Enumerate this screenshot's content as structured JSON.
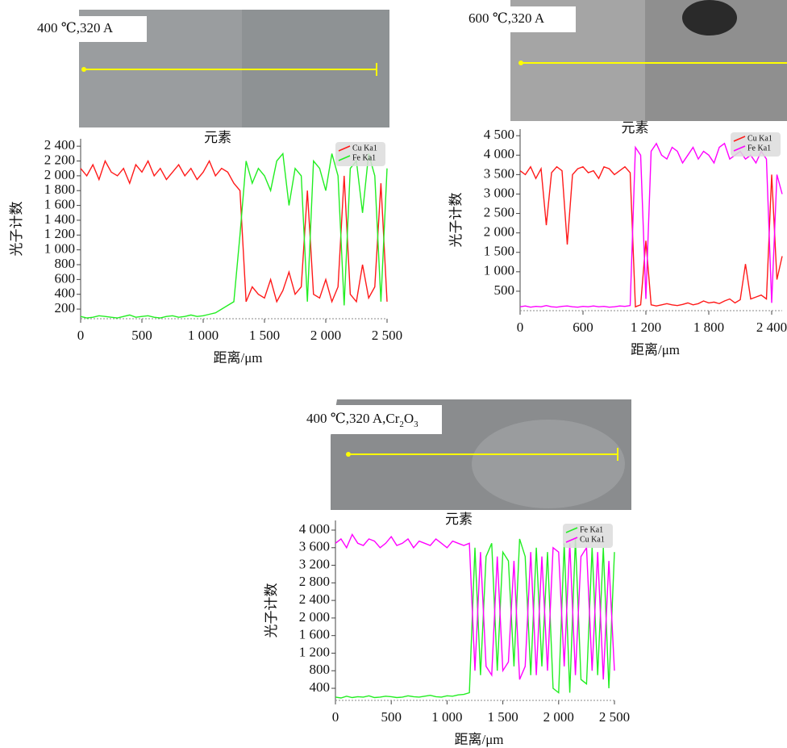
{
  "chart_data": [
    {
      "type": "line",
      "panel_label": [
        "400 ℃,320 A"
      ],
      "title": "元素",
      "xlabel": "距离/μm",
      "ylabel": "光子计数",
      "x": [
        0,
        50,
        100,
        150,
        200,
        250,
        300,
        350,
        400,
        450,
        500,
        550,
        600,
        650,
        700,
        750,
        800,
        850,
        900,
        950,
        1000,
        1050,
        1100,
        1150,
        1200,
        1250,
        1300,
        1350,
        1400,
        1450,
        1500,
        1550,
        1600,
        1650,
        1700,
        1750,
        1800,
        1850,
        1900,
        1950,
        2000,
        2050,
        2100,
        2150,
        2200,
        2250,
        2300,
        2350,
        2400,
        2450,
        2500
      ],
      "series": [
        {
          "name": "Cu Ka1",
          "color": "#ff1a1a",
          "values": [
            2100,
            2000,
            2150,
            1950,
            2200,
            2050,
            2000,
            2100,
            1900,
            2150,
            2050,
            2200,
            2000,
            2100,
            1950,
            2050,
            2150,
            2000,
            2100,
            1950,
            2050,
            2200,
            2000,
            2100,
            2050,
            1900,
            1800,
            300,
            500,
            400,
            350,
            600,
            300,
            450,
            700,
            400,
            500,
            1800,
            400,
            350,
            600,
            300,
            500,
            2000,
            400,
            300,
            800,
            350,
            500,
            1900,
            300
          ]
        },
        {
          "name": "Fe Ka1",
          "color": "#22ee22",
          "values": [
            100,
            80,
            90,
            110,
            100,
            90,
            80,
            100,
            120,
            90,
            100,
            110,
            90,
            80,
            100,
            110,
            90,
            100,
            120,
            100,
            110,
            130,
            150,
            200,
            250,
            300,
            1200,
            2200,
            1900,
            2100,
            2000,
            1800,
            2200,
            2300,
            1600,
            2100,
            2000,
            300,
            2200,
            2100,
            1800,
            2300,
            2000,
            250,
            2100,
            2200,
            1500,
            2300,
            2000,
            300,
            2100
          ]
        }
      ],
      "xlim": [
        0,
        2500
      ],
      "ylim": [
        70,
        2500
      ],
      "xticks": [
        0,
        500,
        {
          "value": 1000,
          "label": "1 000"
        },
        {
          "value": 1500,
          "label": "1 500"
        },
        {
          "value": 2000,
          "label": "2 000"
        },
        {
          "value": 2500,
          "label": "2 500"
        }
      ],
      "yticks": [
        200,
        400,
        600,
        800,
        {
          "value": 1000,
          "label": "1 000"
        },
        {
          "value": 1200,
          "label": "1 200"
        },
        {
          "value": 1400,
          "label": "1 400"
        },
        {
          "value": 1600,
          "label": "1 600"
        },
        {
          "value": 1800,
          "label": "1 800"
        },
        {
          "value": 2000,
          "label": "2 000"
        },
        {
          "value": 2200,
          "label": "2 200"
        },
        {
          "value": 2400,
          "label": "2 400"
        }
      ]
    },
    {
      "type": "line",
      "panel_label": [
        "600 ℃,320 A"
      ],
      "title": "元素",
      "xlabel": "距离/μm",
      "ylabel": "光子计数",
      "x": [
        0,
        50,
        100,
        150,
        200,
        250,
        300,
        350,
        400,
        450,
        500,
        550,
        600,
        650,
        700,
        750,
        800,
        850,
        900,
        950,
        1000,
        1050,
        1100,
        1150,
        1200,
        1250,
        1300,
        1350,
        1400,
        1450,
        1500,
        1550,
        1600,
        1650,
        1700,
        1750,
        1800,
        1850,
        1900,
        1950,
        2000,
        2050,
        2100,
        2150,
        2200,
        2250,
        2300,
        2350,
        2400,
        2450,
        2500
      ],
      "series": [
        {
          "name": "Cu Ka1",
          "color": "#ff1a1a",
          "values": [
            3600,
            3500,
            3700,
            3400,
            3650,
            2200,
            3550,
            3700,
            3600,
            1700,
            3500,
            3650,
            3700,
            3550,
            3600,
            3400,
            3700,
            3650,
            3500,
            3600,
            3700,
            3550,
            100,
            150,
            1800,
            150,
            120,
            150,
            180,
            150,
            130,
            160,
            200,
            150,
            180,
            250,
            200,
            220,
            180,
            250,
            300,
            200,
            280,
            1200,
            300,
            350,
            400,
            300,
            3500,
            800,
            1400
          ]
        },
        {
          "name": "Fe Ka1",
          "color": "#ff00ff",
          "values": [
            100,
            120,
            90,
            110,
            100,
            130,
            100,
            90,
            110,
            120,
            100,
            90,
            110,
            100,
            120,
            100,
            110,
            90,
            100,
            120,
            110,
            130,
            4200,
            4000,
            300,
            4100,
            4300,
            4000,
            3900,
            4200,
            4100,
            3800,
            4000,
            4200,
            3900,
            4100,
            4000,
            3800,
            4200,
            4300,
            3900,
            4000,
            4100,
            3900,
            4000,
            3800,
            4100,
            3900,
            200,
            3500,
            3000
          ]
        }
      ],
      "xlim": [
        0,
        2500
      ],
      "ylim": [
        0,
        4670
      ],
      "xticks": [
        0,
        600,
        {
          "value": 1200,
          "label": "1 200"
        },
        {
          "value": 1800,
          "label": "1 800"
        },
        {
          "value": 2400,
          "label": "2 400"
        }
      ],
      "yticks": [
        500,
        {
          "value": 1000,
          "label": "1 000"
        },
        {
          "value": 1500,
          "label": "1 500"
        },
        {
          "value": 2000,
          "label": "2 000"
        },
        {
          "value": 2500,
          "label": "2 500"
        },
        {
          "value": 3000,
          "label": "3 000"
        },
        {
          "value": 3500,
          "label": "3 500"
        },
        {
          "value": 4000,
          "label": "4 000"
        },
        {
          "value": 4500,
          "label": "4 500"
        }
      ]
    },
    {
      "type": "line",
      "panel_label": [
        "400 ℃,320 A,Cr",
        "2",
        "O",
        "3"
      ],
      "title": "元素",
      "xlabel": "距离/μm",
      "ylabel": "光子计数",
      "x": [
        0,
        50,
        100,
        150,
        200,
        250,
        300,
        350,
        400,
        450,
        500,
        550,
        600,
        650,
        700,
        750,
        800,
        850,
        900,
        950,
        1000,
        1050,
        1100,
        1150,
        1200,
        1250,
        1300,
        1350,
        1400,
        1450,
        1500,
        1550,
        1600,
        1650,
        1700,
        1750,
        1800,
        1850,
        1900,
        1950,
        2000,
        2050,
        2100,
        2150,
        2200,
        2250,
        2300,
        2350,
        2400,
        2450,
        2500
      ],
      "series": [
        {
          "name": "Fe Ka1",
          "color": "#22ee22",
          "values": [
            200,
            180,
            220,
            190,
            210,
            200,
            230,
            190,
            200,
            220,
            210,
            190,
            200,
            230,
            210,
            200,
            220,
            240,
            210,
            200,
            230,
            220,
            250,
            260,
            300,
            3600,
            700,
            3400,
            3700,
            800,
            3500,
            3300,
            900,
            3800,
            3400,
            700,
            3600,
            900,
            3500,
            400,
            300,
            3700,
            300,
            3800,
            600,
            500,
            3600,
            700,
            3600,
            400,
            3500
          ]
        },
        {
          "name": "Cu Ka1",
          "color": "#ff00ff",
          "values": [
            3700,
            3800,
            3600,
            3900,
            3700,
            3650,
            3800,
            3750,
            3600,
            3700,
            3850,
            3650,
            3700,
            3800,
            3600,
            3750,
            3700,
            3650,
            3800,
            3700,
            3600,
            3750,
            3700,
            3650,
            3700,
            800,
            3500,
            900,
            700,
            3400,
            800,
            1000,
            3300,
            600,
            900,
            3500,
            700,
            3400,
            800,
            3600,
            3500,
            900,
            3700,
            700,
            3400,
            3600,
            800,
            3500,
            600,
            3300,
            800
          ]
        }
      ],
      "xlim": [
        0,
        2500
      ],
      "ylim": [
        125,
        4220
      ],
      "xticks": [
        0,
        500,
        {
          "value": 1000,
          "label": "1 000"
        },
        {
          "value": 1500,
          "label": "1 500"
        },
        {
          "value": 2000,
          "label": "2 000"
        },
        {
          "value": 2500,
          "label": "2 500"
        }
      ],
      "yticks": [
        400,
        800,
        {
          "value": 1200,
          "label": "1 200"
        },
        {
          "value": 1600,
          "label": "1 600"
        },
        {
          "value": 2000,
          "label": "2 000"
        },
        {
          "value": 2400,
          "label": "2 400"
        },
        {
          "value": 2800,
          "label": "2 800"
        },
        {
          "value": 3200,
          "label": "3 200"
        },
        {
          "value": 3600,
          "label": "3 600"
        },
        {
          "value": 4000,
          "label": "4 000"
        }
      ]
    }
  ]
}
